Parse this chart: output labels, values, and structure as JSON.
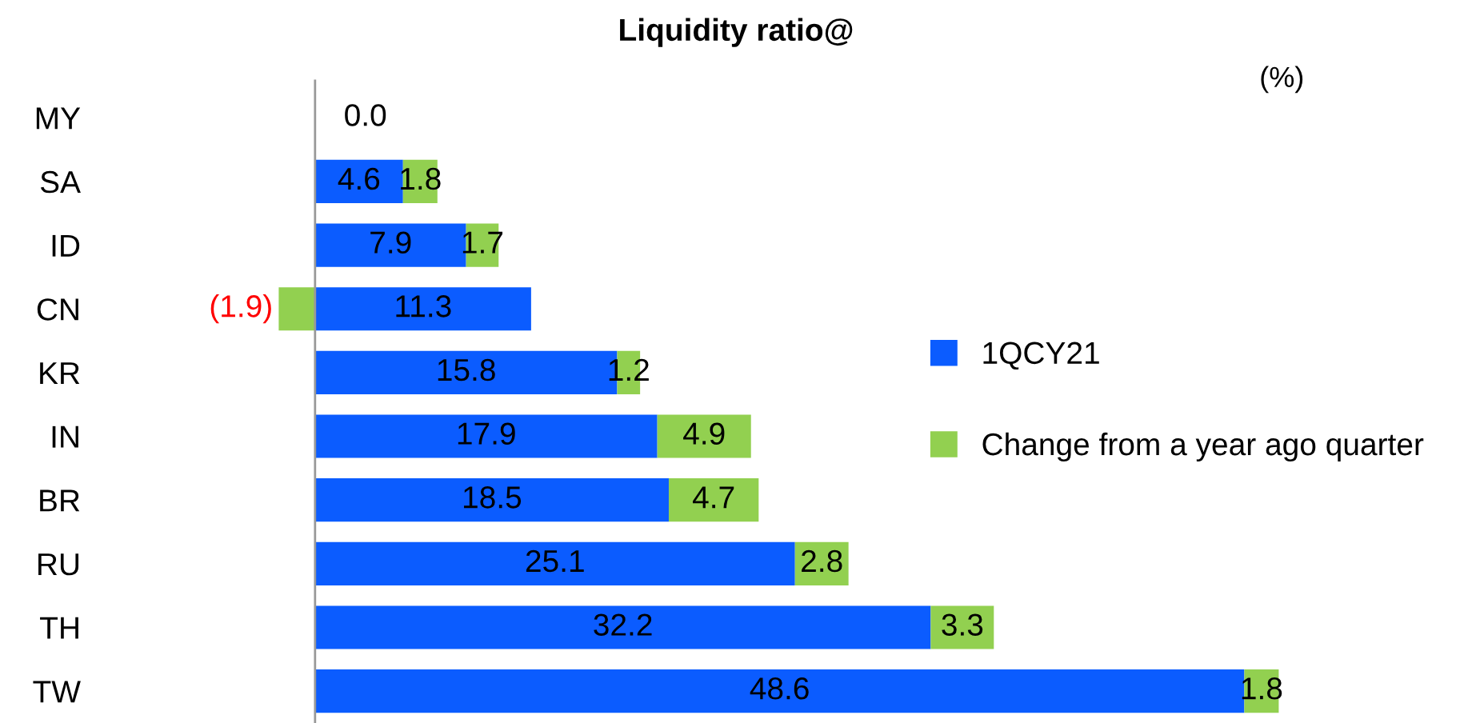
{
  "chart_data": {
    "type": "bar",
    "orientation": "horizontal",
    "stacked": true,
    "title": "Liquidity ratio@",
    "categories": [
      "MY",
      "SA",
      "ID",
      "CN",
      "KR",
      "IN",
      "BR",
      "RU",
      "TH",
      "TW"
    ],
    "series": [
      {
        "name": "1QCY21",
        "color": "#0b5cff",
        "values": [
          0.0,
          4.6,
          7.9,
          11.3,
          15.8,
          17.9,
          18.5,
          25.1,
          32.2,
          48.6
        ],
        "value_labels": [
          "0.0",
          "4.6",
          "7.9",
          "11.3",
          "15.8",
          "17.9",
          "18.5",
          "25.1",
          "32.2",
          "48.6"
        ]
      },
      {
        "name": "Change from a year ago quarter",
        "color": "#92d050",
        "values": [
          null,
          1.8,
          1.7,
          -1.9,
          1.2,
          4.9,
          4.7,
          2.8,
          3.3,
          1.8
        ],
        "value_labels": [
          null,
          "1.8",
          "1.7",
          "(1.9)",
          "1.2",
          "4.9",
          "4.7",
          "2.8",
          "3.3",
          "1.8"
        ]
      }
    ],
    "annotations": [
      "(%)"
    ],
    "legend": "right",
    "tick_labels": "y",
    "grid": false
  }
}
